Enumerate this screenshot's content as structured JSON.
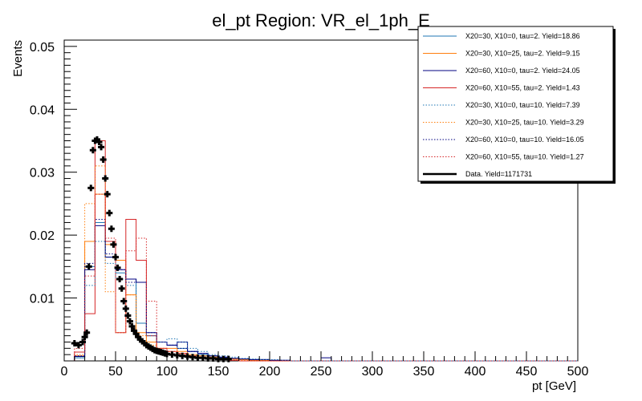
{
  "chart_data": {
    "type": "histogram",
    "title": "el_pt Region: VR_el_1ph_E",
    "xlabel": "pt [GeV]",
    "ylabel": "Events",
    "xlim": [
      0,
      500
    ],
    "ylim": [
      0,
      0.051
    ],
    "xticks": [
      0,
      50,
      100,
      150,
      200,
      250,
      300,
      350,
      400,
      450,
      500
    ],
    "yticks": [
      0.01,
      0.02,
      0.03,
      0.04,
      0.05
    ],
    "xtick_labels": [
      "0",
      "50",
      "100",
      "150",
      "200",
      "250",
      "300",
      "350",
      "400",
      "450",
      "500"
    ],
    "ytick_labels": [
      "0.01",
      "0.02",
      "0.03",
      "0.04",
      "0.05"
    ],
    "bin_edges": [
      10,
      20,
      30,
      40,
      50,
      60,
      70,
      80,
      90,
      100,
      110,
      120,
      130,
      140,
      150,
      160,
      170,
      180,
      190,
      200,
      210,
      220,
      230,
      240,
      250,
      260,
      270,
      280,
      290,
      300
    ],
    "series": [
      {
        "name": "X20=30, X10=0, tau=2. Yield=18.86",
        "color": "#1f77b4",
        "style": "solid",
        "values": [
          0.0005,
          0.015,
          0.022,
          0.0165,
          0.014,
          0.013,
          0.006,
          0.004,
          0.003,
          0.0025,
          0.002,
          0.0015,
          0.001,
          0.0008,
          0.0005,
          0.0004,
          0.0003,
          0.0002,
          0.0002,
          0.0001,
          0,
          0,
          0,
          0,
          0,
          0,
          0,
          0,
          0
        ]
      },
      {
        "name": "X20=30, X10=25, tau=2. Yield=9.15",
        "color": "#ff7f0e",
        "style": "solid",
        "values": [
          0.0008,
          0.019,
          0.0265,
          0.0185,
          0.016,
          0.0105,
          0.0045,
          0.003,
          0.002,
          0.002,
          0.0015,
          0.001,
          0.0008,
          0.0006,
          0.0004,
          0.0003,
          0.0002,
          0.0001,
          0.0001,
          0,
          0,
          0,
          0,
          0,
          0,
          0,
          0,
          0,
          0
        ]
      },
      {
        "name": "X20=60, X10=0, tau=2. Yield=24.05",
        "color": "#000080",
        "style": "solid",
        "values": [
          0.0007,
          0.0145,
          0.0215,
          0.0165,
          0.0145,
          0.013,
          0.0125,
          0.0045,
          0.003,
          0.0025,
          0.003,
          0.0015,
          0.0012,
          0.0008,
          0.0006,
          0.0004,
          0.0003,
          0.0002,
          0.0002,
          0.0001,
          0.0001,
          0,
          0,
          0,
          0.0005,
          0,
          0,
          0,
          0
        ]
      },
      {
        "name": "X20=60, X10=55, tau=2. Yield=1.43",
        "color": "#d62728",
        "style": "solid",
        "values": [
          0.0014,
          0.0075,
          0.035,
          0.019,
          0.0045,
          0.0225,
          0.016,
          0.004,
          0.002,
          0.0015,
          0.0012,
          0.0008,
          0.0005,
          0.0003,
          0.0002,
          0.0001,
          0,
          0,
          0,
          0,
          0,
          0,
          0,
          0,
          0,
          0,
          0,
          0,
          0
        ]
      },
      {
        "name": "X20=30, X10=0, tau=10. Yield=7.39",
        "color": "#1f77b4",
        "style": "dotted",
        "values": [
          0.0005,
          0.012,
          0.019,
          0.0155,
          0.013,
          0.012,
          0.006,
          0.004,
          0.003,
          0.0035,
          0.003,
          0.002,
          0.0015,
          0.001,
          0.0008,
          0.0006,
          0.0004,
          0.0003,
          0.0002,
          0.0002,
          0.0001,
          0,
          0,
          0,
          0,
          0,
          0,
          0,
          0
        ]
      },
      {
        "name": "X20=30, X10=25, tau=10. Yield=3.29",
        "color": "#ff7f0e",
        "style": "dotted",
        "values": [
          0.001,
          0.025,
          0.031,
          0.011,
          0.0045,
          0.0105,
          0.004,
          0.0025,
          0.002,
          0.0015,
          0.001,
          0.0008,
          0.0005,
          0.0004,
          0.0003,
          0.0002,
          0.0001,
          0,
          0,
          0,
          0,
          0,
          0,
          0,
          0,
          0,
          0,
          0,
          0
        ]
      },
      {
        "name": "X20=60, X10=0, tau=10. Yield=16.05",
        "color": "#000080",
        "style": "dotted",
        "values": [
          0.0008,
          0.0155,
          0.0225,
          0.017,
          0.0145,
          0.0125,
          0.0125,
          0.0045,
          0.003,
          0.0025,
          0.002,
          0.0015,
          0.0012,
          0.0008,
          0.0006,
          0.0004,
          0.0003,
          0.0002,
          0.0002,
          0.0001,
          0.0001,
          0,
          0,
          0,
          0,
          0,
          0,
          0,
          0
        ]
      },
      {
        "name": "X20=60, X10=55, tau=10. Yield=1.27",
        "color": "#d62728",
        "style": "dotted",
        "values": [
          0.002,
          0.0135,
          0.0265,
          0.0195,
          0.0045,
          0.0175,
          0.0195,
          0.0095,
          0.002,
          0.0015,
          0.001,
          0.0008,
          0.0005,
          0.0003,
          0.0002,
          0.0001,
          0,
          0,
          0,
          0,
          0,
          0,
          0,
          0,
          0,
          0,
          0,
          0,
          0
        ]
      }
    ],
    "data_series": {
      "name": "Data. Yield=1171731",
      "color": "#000000",
      "x": [
        10,
        14,
        18,
        20,
        22,
        24,
        26,
        28,
        30,
        32,
        34,
        36,
        38,
        40,
        42,
        44,
        46,
        48,
        50,
        52,
        54,
        56,
        58,
        60,
        62,
        64,
        66,
        68,
        70,
        72,
        74,
        76,
        78,
        80,
        82,
        84,
        86,
        88,
        90,
        92,
        94,
        96,
        98,
        100,
        105,
        110,
        115,
        120,
        125,
        130,
        135,
        140,
        145,
        150,
        155,
        160
      ],
      "y": [
        0.0028,
        0.0025,
        0.003,
        0.0038,
        0.0045,
        0.015,
        0.0275,
        0.0335,
        0.035,
        0.0352,
        0.0348,
        0.034,
        0.032,
        0.029,
        0.0265,
        0.0235,
        0.021,
        0.0185,
        0.0165,
        0.0148,
        0.013,
        0.0115,
        0.0095,
        0.0083,
        0.0072,
        0.0063,
        0.0055,
        0.0048,
        0.0043,
        0.0038,
        0.0034,
        0.0031,
        0.0028,
        0.0025,
        0.0023,
        0.0021,
        0.0019,
        0.0017,
        0.0016,
        0.0015,
        0.0014,
        0.0013,
        0.0012,
        0.0011,
        0.001,
        0.0009,
        0.0008,
        0.0007,
        0.0006,
        0.0005,
        0.0005,
        0.0004,
        0.0004,
        0.0003,
        0.0003,
        0.0003
      ]
    },
    "legend": "top-right"
  }
}
